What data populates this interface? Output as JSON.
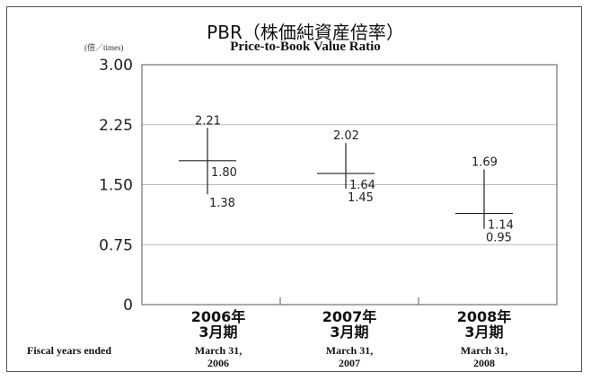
{
  "chart_data": {
    "type": "range",
    "title": "PBR（株価純資産倍率）",
    "subtitle": "Price-to-Book Value Ratio",
    "unit_label": "(倍／times)",
    "x_axis_title": "Fiscal years ended",
    "y_ticks": [
      "3.00",
      "2.25",
      "1.50",
      "0.75",
      "0"
    ],
    "y_tick_values": [
      3.0,
      2.25,
      1.5,
      0.75,
      0
    ],
    "ylim": [
      0,
      3.0
    ],
    "grid": true,
    "categories": [
      {
        "label_ja": [
          "2006年",
          "3月期"
        ],
        "label_en": [
          "March 31,",
          "2006"
        ],
        "high": 2.21,
        "value": 1.8,
        "low": 1.38,
        "high_label": "2.21",
        "value_label": "1.80",
        "low_label": "1.38"
      },
      {
        "label_ja": [
          "2007年",
          "3月期"
        ],
        "label_en": [
          "March 31,",
          "2007"
        ],
        "high": 2.02,
        "value": 1.64,
        "low": 1.45,
        "high_label": "2.02",
        "value_label": "1.64",
        "low_label": "1.45"
      },
      {
        "label_ja": [
          "2008年",
          "3月期"
        ],
        "label_en": [
          "March 31,",
          "2008"
        ],
        "high": 1.69,
        "value": 1.14,
        "low": 0.95,
        "high_label": "1.69",
        "value_label": "1.14",
        "low_label": "0.95"
      }
    ]
  }
}
